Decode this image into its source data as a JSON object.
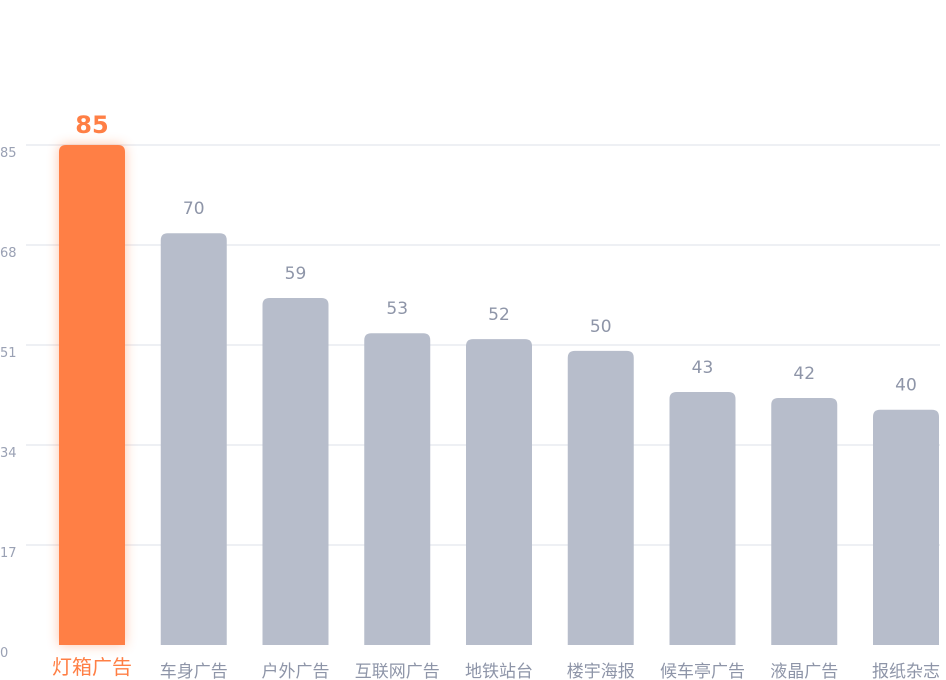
{
  "chart_data": {
    "type": "bar",
    "categories": [
      "灯箱广告",
      "车身广告",
      "户外广告",
      "互联网广告",
      "地铁站台",
      "楼宇海报",
      "候车亭广告",
      "液晶广告",
      "报纸杂志"
    ],
    "values": [
      85,
      70,
      59,
      53,
      52,
      50,
      43,
      42,
      40
    ],
    "y_ticks": [
      "0",
      "17",
      "34",
      "51",
      "68",
      "85"
    ],
    "ylim": [
      0,
      85
    ],
    "grid": true,
    "highlight_index": 0,
    "colors": {
      "highlight": "#ff7f45",
      "bar": "#b7bdcb",
      "grid": "#dde0e8"
    }
  }
}
